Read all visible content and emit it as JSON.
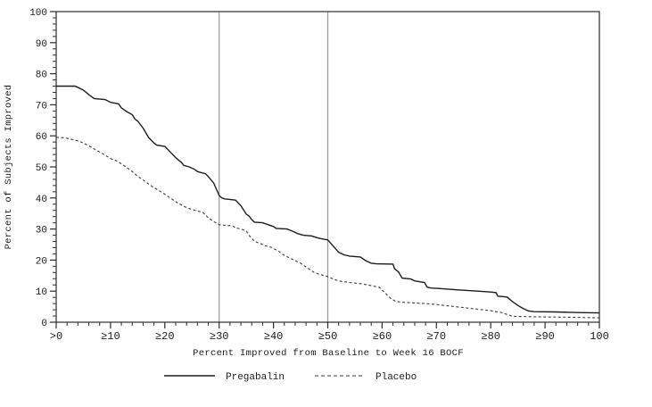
{
  "chart_data": {
    "type": "line",
    "title": "",
    "xlabel": "Percent Improved from Baseline to Week 16 BOCF",
    "ylabel": "Percent of Subjects Improved",
    "xlim": [
      0,
      100
    ],
    "ylim": [
      0,
      100
    ],
    "grid": "off",
    "legend_position": "bottom",
    "x_ticks": [
      {
        "value": 0,
        "label": ">0"
      },
      {
        "value": 10,
        "label": "≥10"
      },
      {
        "value": 20,
        "label": "≥20"
      },
      {
        "value": 30,
        "label": "≥30"
      },
      {
        "value": 40,
        "label": "≥40"
      },
      {
        "value": 50,
        "label": "≥50"
      },
      {
        "value": 60,
        "label": "≥60"
      },
      {
        "value": 70,
        "label": "≥70"
      },
      {
        "value": 80,
        "label": "≥80"
      },
      {
        "value": 90,
        "label": "≥90"
      },
      {
        "value": 100,
        "label": "100"
      }
    ],
    "y_ticks": [
      0,
      10,
      20,
      30,
      40,
      50,
      60,
      70,
      80,
      90,
      100
    ],
    "minor_tick_step": 2,
    "reference_lines_x": [
      30,
      50
    ],
    "colors": {
      "pregabalin": "#1c1c1c",
      "placebo": "#3a3a3a",
      "reference_line": "#9a9a9a",
      "frame": "#2b2b2b",
      "text": "#1a1a1a"
    },
    "legend": [
      {
        "label": "Pregabalin",
        "style": "solid"
      },
      {
        "label": "Placebo",
        "style": "dashed"
      }
    ],
    "series": [
      {
        "name": "Pregabalin",
        "style": "solid",
        "points": [
          [
            0,
            76
          ],
          [
            3.5,
            76
          ],
          [
            5,
            74.7
          ],
          [
            6,
            73.3
          ],
          [
            7,
            72
          ],
          [
            9,
            71.7
          ],
          [
            10,
            70.8
          ],
          [
            11.5,
            70.3
          ],
          [
            12,
            69
          ],
          [
            13,
            67.8
          ],
          [
            14,
            66.8
          ],
          [
            14.5,
            65.4
          ],
          [
            15,
            64.8
          ],
          [
            16,
            62.5
          ],
          [
            17,
            59.5
          ],
          [
            18,
            57.7
          ],
          [
            18.5,
            57
          ],
          [
            20,
            56.6
          ],
          [
            21,
            54.8
          ],
          [
            22,
            53
          ],
          [
            23,
            51.5
          ],
          [
            23.5,
            50.5
          ],
          [
            24.5,
            50
          ],
          [
            25.5,
            49.2
          ],
          [
            26,
            48.5
          ],
          [
            27.5,
            47.8
          ],
          [
            28,
            46.9
          ],
          [
            29,
            44.8
          ],
          [
            29.5,
            42.8
          ],
          [
            30,
            40.8
          ],
          [
            30.5,
            40
          ],
          [
            31,
            39.7
          ],
          [
            33,
            39.3
          ],
          [
            34,
            37.5
          ],
          [
            35,
            34.8
          ],
          [
            35.5,
            34.2
          ],
          [
            36,
            33
          ],
          [
            36.5,
            32.2
          ],
          [
            38,
            32
          ],
          [
            39,
            31.4
          ],
          [
            40,
            30.8
          ],
          [
            40.5,
            30.2
          ],
          [
            42.5,
            30
          ],
          [
            43.5,
            29.3
          ],
          [
            44.5,
            28.5
          ],
          [
            45.5,
            28
          ],
          [
            47,
            27.8
          ],
          [
            48,
            27.2
          ],
          [
            49,
            26.8
          ],
          [
            50,
            26.5
          ],
          [
            51,
            24.5
          ],
          [
            52,
            22.5
          ],
          [
            53,
            21.7
          ],
          [
            54,
            21.3
          ],
          [
            56,
            21
          ],
          [
            57,
            19.8
          ],
          [
            58,
            19
          ],
          [
            59,
            18.8
          ],
          [
            62,
            18.7
          ],
          [
            62.3,
            17.2
          ],
          [
            63,
            16.2
          ],
          [
            63.7,
            14.2
          ],
          [
            65.3,
            13.9
          ],
          [
            66,
            13.3
          ],
          [
            67.8,
            12.8
          ],
          [
            68.3,
            11.3
          ],
          [
            69,
            11
          ],
          [
            71,
            10.8
          ],
          [
            74,
            10.4
          ],
          [
            77,
            10.1
          ],
          [
            80,
            9.7
          ],
          [
            81,
            9.5
          ],
          [
            81.3,
            8.4
          ],
          [
            83,
            8.1
          ],
          [
            84,
            6.6
          ],
          [
            85,
            5.4
          ],
          [
            86,
            4.4
          ],
          [
            87,
            3.6
          ],
          [
            88,
            3.4
          ],
          [
            92,
            3.3
          ],
          [
            96,
            3.1
          ],
          [
            100,
            3
          ]
        ]
      },
      {
        "name": "Placebo",
        "style": "dashed",
        "points": [
          [
            0,
            59.5
          ],
          [
            1.5,
            59.4
          ],
          [
            2.5,
            59
          ],
          [
            4,
            58.4
          ],
          [
            5,
            57.7
          ],
          [
            6,
            56.8
          ],
          [
            7,
            55.8
          ],
          [
            8,
            54.8
          ],
          [
            9,
            53.8
          ],
          [
            10,
            52.7
          ],
          [
            11,
            52
          ],
          [
            12,
            51
          ],
          [
            13,
            49.8
          ],
          [
            14,
            48.5
          ],
          [
            15,
            47
          ],
          [
            16,
            45.8
          ],
          [
            17,
            44.5
          ],
          [
            18,
            43.3
          ],
          [
            19,
            42.3
          ],
          [
            20,
            41.2
          ],
          [
            21,
            40
          ],
          [
            22,
            38.8
          ],
          [
            23,
            37.8
          ],
          [
            24,
            36.9
          ],
          [
            25,
            36.3
          ],
          [
            26,
            35.8
          ],
          [
            27,
            35.4
          ],
          [
            27.5,
            34.5
          ],
          [
            28,
            33.6
          ],
          [
            29,
            32.4
          ],
          [
            30,
            31.4
          ],
          [
            31,
            31.2
          ],
          [
            32.5,
            31
          ],
          [
            33,
            30.4
          ],
          [
            34,
            30
          ],
          [
            35,
            29.4
          ],
          [
            35.5,
            28
          ],
          [
            36,
            27
          ],
          [
            36.5,
            26
          ],
          [
            37.5,
            25.4
          ],
          [
            38.5,
            24.6
          ],
          [
            39.5,
            24.2
          ],
          [
            41,
            22.8
          ],
          [
            42,
            21.5
          ],
          [
            43,
            20.7
          ],
          [
            44,
            19.8
          ],
          [
            45,
            19
          ],
          [
            46,
            17.8
          ],
          [
            47,
            16.6
          ],
          [
            47.5,
            16
          ],
          [
            48.5,
            15.4
          ],
          [
            50,
            14.7
          ],
          [
            51,
            13.9
          ],
          [
            52,
            13.3
          ],
          [
            54,
            12.8
          ],
          [
            56,
            12.4
          ],
          [
            58,
            11.8
          ],
          [
            59.5,
            11.2
          ],
          [
            60.5,
            9.5
          ],
          [
            61.5,
            7.8
          ],
          [
            62.5,
            6.7
          ],
          [
            64,
            6.4
          ],
          [
            66,
            6.2
          ],
          [
            68,
            6
          ],
          [
            70,
            5.7
          ],
          [
            72,
            5.3
          ],
          [
            74,
            4.9
          ],
          [
            76,
            4.5
          ],
          [
            78,
            4.1
          ],
          [
            80,
            3.7
          ],
          [
            81,
            3.4
          ],
          [
            82,
            3.1
          ],
          [
            83,
            2.5
          ],
          [
            84,
            1.9
          ],
          [
            86,
            1.8
          ],
          [
            90,
            1.7
          ],
          [
            94,
            1.6
          ],
          [
            100,
            1.4
          ]
        ]
      }
    ]
  }
}
